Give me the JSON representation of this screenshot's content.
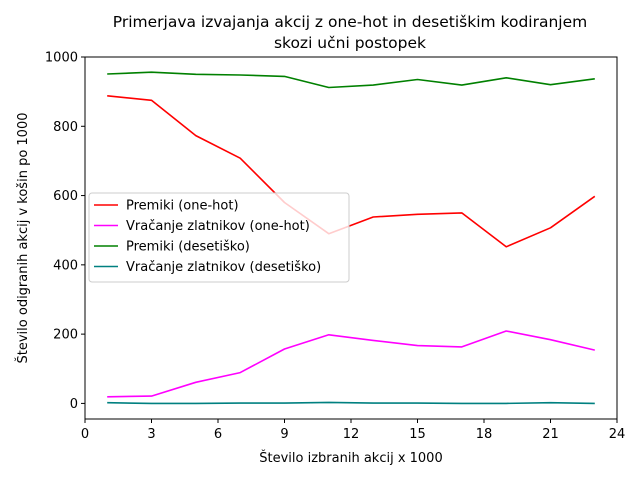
{
  "chart_data": {
    "type": "line",
    "title_line1": "Primerjava izvajanja akcij z one-hot in desetiškim kodiranjem",
    "title_line2": "skozi učni postopek",
    "xlabel": "Število izbranih akcij x 1000",
    "ylabel": "Število odigranih akcij v košin po 1000",
    "xlim": [
      0,
      24
    ],
    "ylim": [
      -45,
      1000
    ],
    "xticks": [
      0,
      3,
      6,
      9,
      12,
      15,
      18,
      21,
      24
    ],
    "yticks": [
      0,
      200,
      400,
      600,
      800,
      1000
    ],
    "grid": false,
    "legend_position": "center-left",
    "x": [
      1,
      3,
      5,
      7,
      9,
      11,
      13,
      15,
      17,
      19,
      21,
      23
    ],
    "series": [
      {
        "name": "Premiki (one-hot)",
        "color": "#ff0000",
        "values": [
          888,
          875,
          773,
          708,
          580,
          490,
          538,
          546,
          550,
          452,
          507,
          598
        ]
      },
      {
        "name": "Vračanje zlatnikov (one-hot)",
        "color": "#ff00ff",
        "values": [
          19,
          21,
          61,
          89,
          157,
          198,
          182,
          167,
          163,
          209,
          184,
          154
        ]
      },
      {
        "name": "Premiki (desetiško)",
        "color": "#008000",
        "values": [
          951,
          956,
          950,
          948,
          944,
          912,
          919,
          935,
          919,
          940,
          920,
          937
        ]
      },
      {
        "name": "Vračanje zlatnikov (desetiško)",
        "color": "#008080",
        "values": [
          2,
          0,
          0,
          1,
          1,
          3,
          1,
          1,
          0,
          0,
          2,
          0
        ]
      }
    ]
  }
}
